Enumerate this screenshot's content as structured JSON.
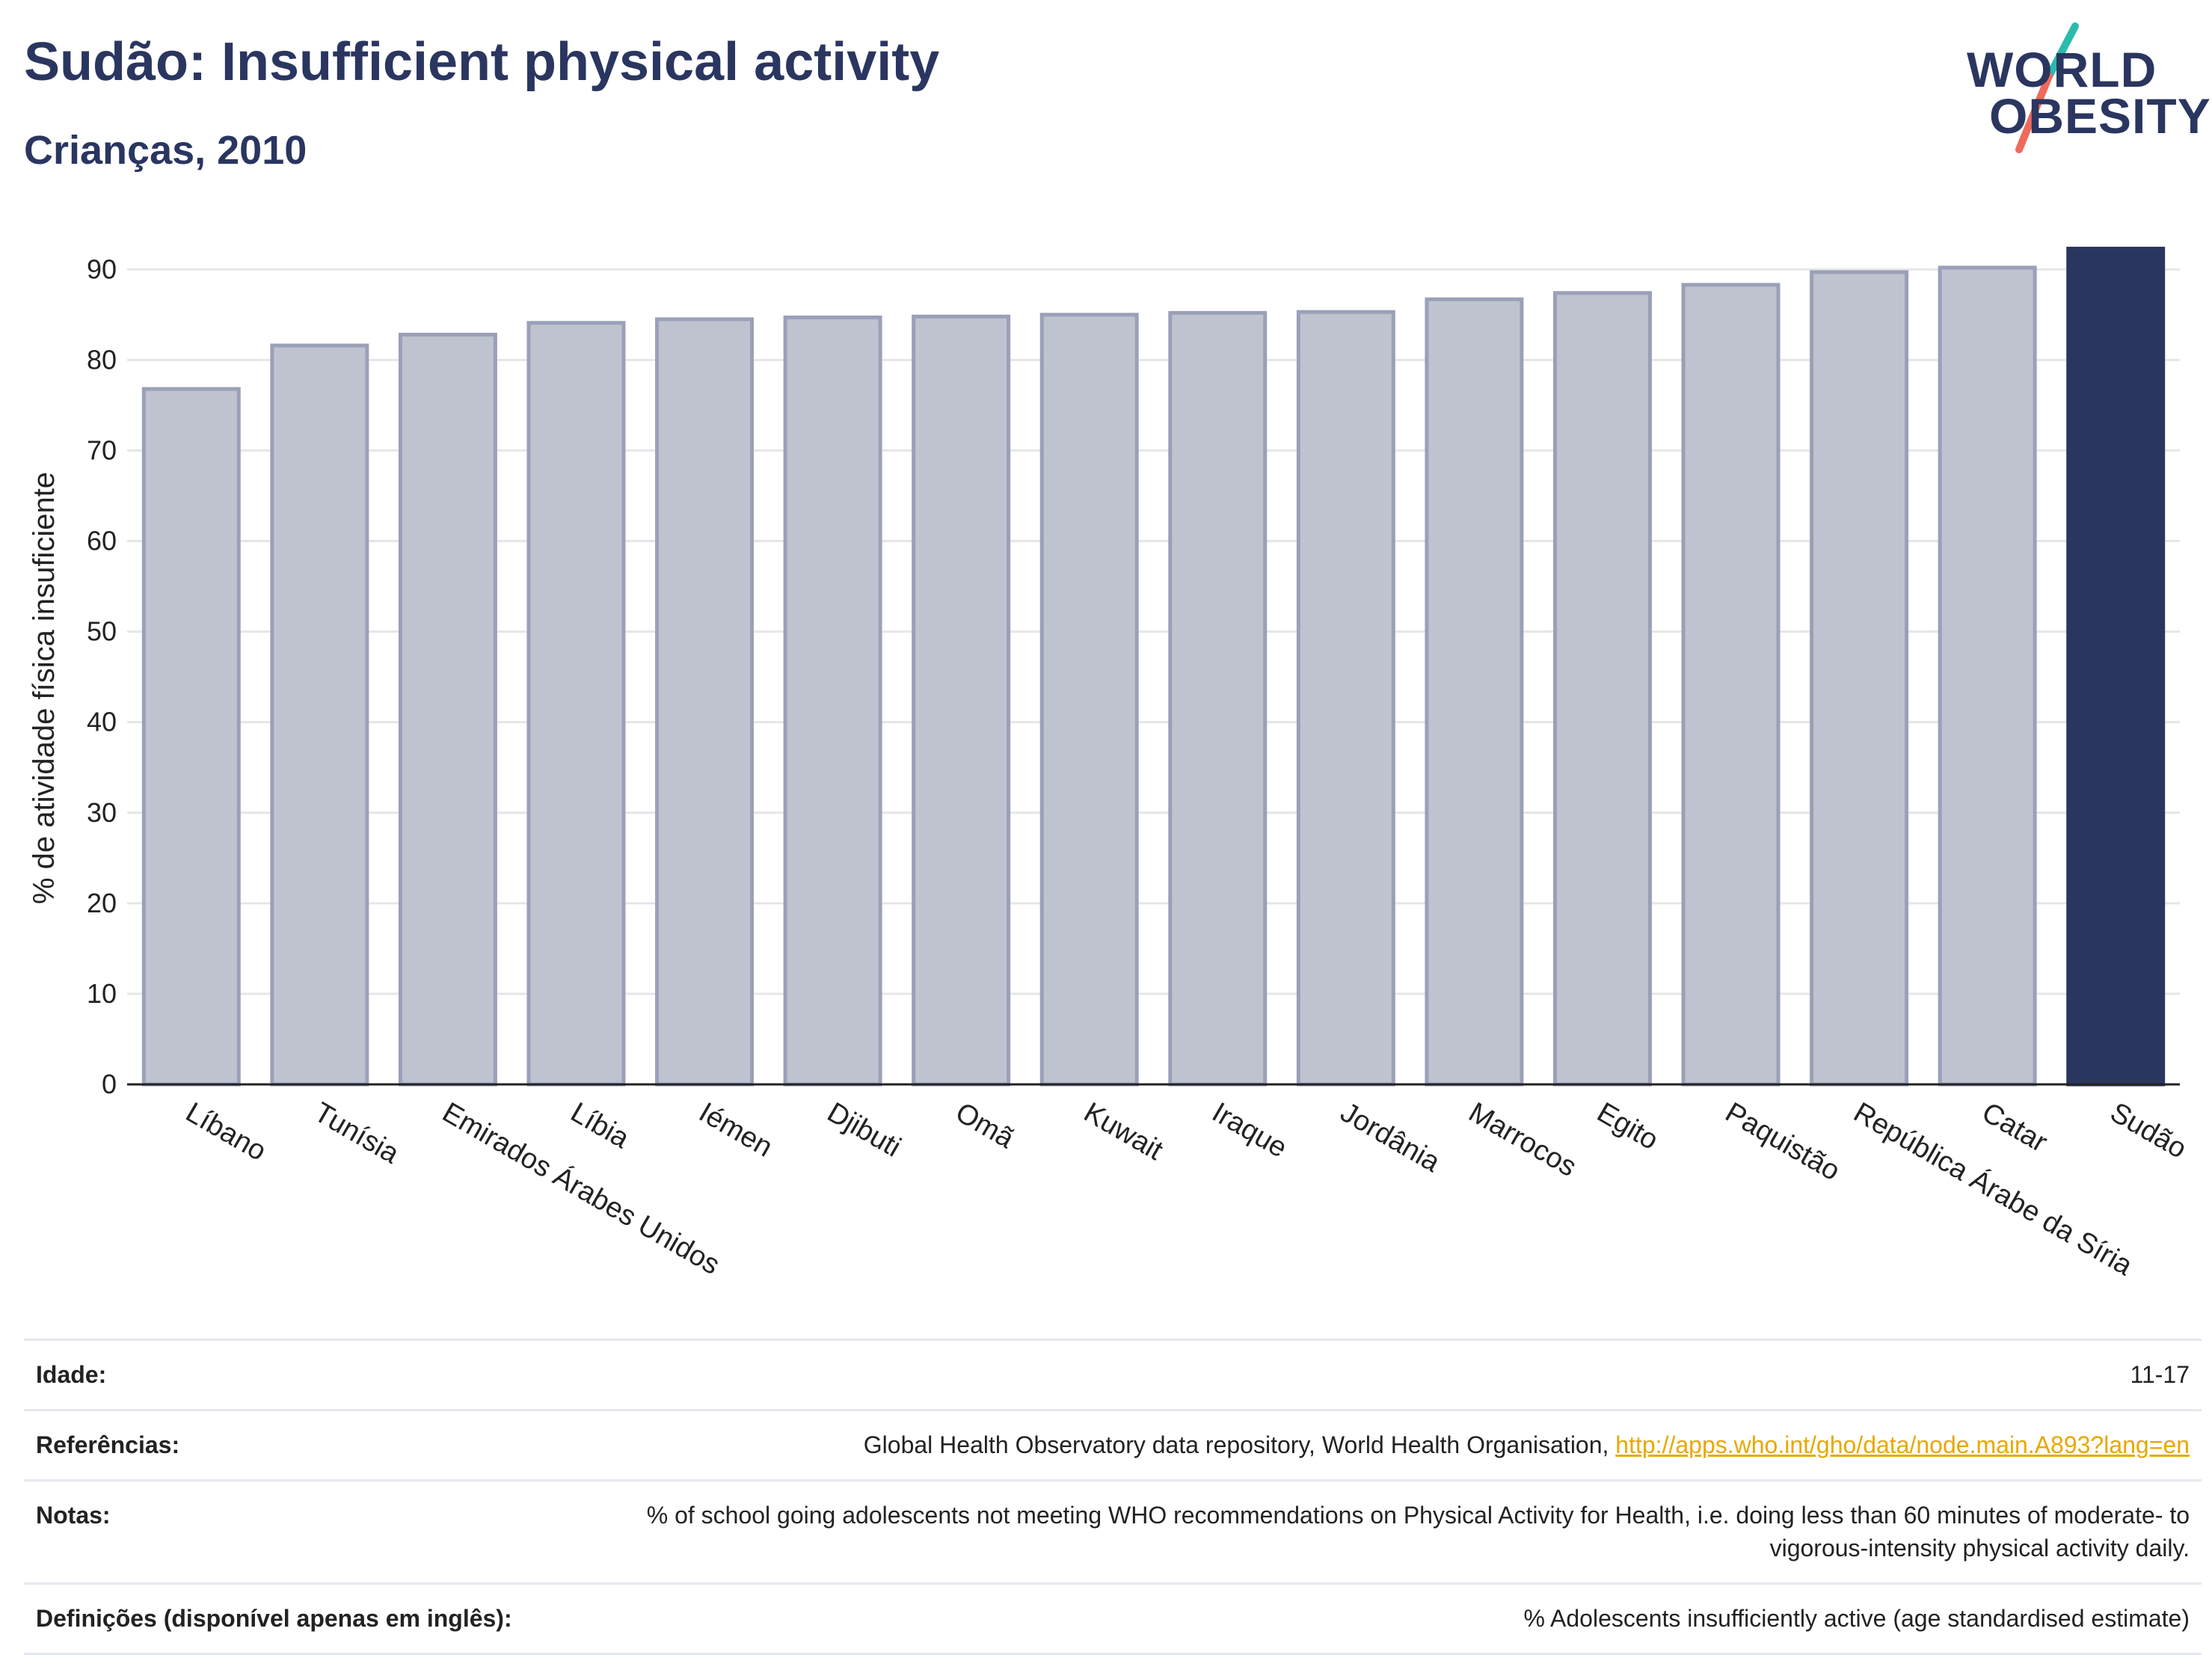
{
  "header": {
    "title": "Sudão: Insufficient physical activity",
    "subtitle": "Crianças, 2010"
  },
  "logo": {
    "line1": "WORLD",
    "line2": "OBESITY",
    "colors": {
      "text": "#2a3660",
      "teal": "#2bbbad",
      "coral": "#ef6a5a"
    }
  },
  "colors": {
    "bar_fill": "#bfc3d0",
    "bar_stroke": "#9aa0b8",
    "highlight": "#2a3660",
    "grid": "#e6e6e6",
    "axis": "#222222"
  },
  "chart_data": {
    "type": "bar",
    "ylabel": "% de atividade física insuficiente",
    "ylim": [
      0,
      92.5
    ],
    "yticks": [
      0,
      10,
      20,
      30,
      40,
      50,
      60,
      70,
      80,
      90
    ],
    "grid": true,
    "categories": [
      "Líbano",
      "Tunísia",
      "Emirados Árabes Unidos",
      "Líbia",
      "Iémen",
      "Djibuti",
      "Omã",
      "Kuwait",
      "Iraque",
      "Jordânia",
      "Marrocos",
      "Egito",
      "Paquistão",
      "República Árabe da Síria",
      "Catar",
      "Sudão"
    ],
    "values": [
      76.8,
      81.6,
      82.8,
      84.1,
      84.5,
      84.7,
      84.8,
      85.0,
      85.2,
      85.3,
      86.7,
      87.4,
      88.3,
      89.7,
      90.2,
      92.3
    ],
    "highlight": "Sudão"
  },
  "details": [
    {
      "label": "Idade:",
      "value": "11-17"
    },
    {
      "label": "Referências:",
      "value": "Global Health Observatory data repository, World Health Organisation,",
      "link": "http://apps.who.int/gho/data/node.main.A893?lang=en"
    },
    {
      "label": "Notas:",
      "value": "% of school going adolescents not meeting WHO recommendations on Physical Activity for Health, i.e. doing less than 60 minutes of moderate- to vigorous-intensity physical activity daily."
    },
    {
      "label": "Definições (disponível apenas em inglês):",
      "value": "% Adolescents insufficiently active (age standardised estimate)"
    }
  ]
}
